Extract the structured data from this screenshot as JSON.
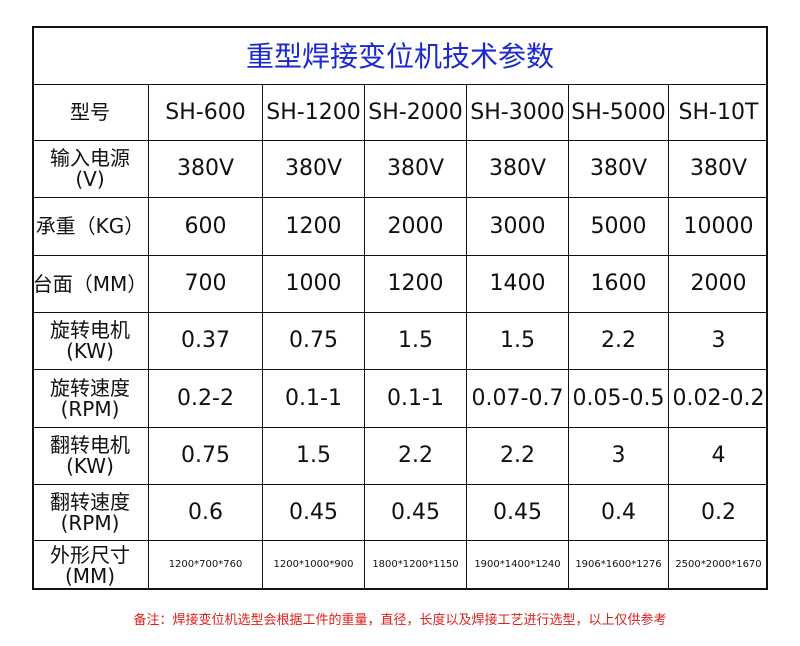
{
  "table": {
    "title": "重型焊接变位机技术参数",
    "header": [
      "型号",
      "SH-600",
      "SH-1200",
      "SH-2000",
      "SH-3000",
      "SH-5000",
      "SH-10T"
    ],
    "rows": [
      {
        "label": [
          "输入电源",
          "(V)"
        ],
        "cells": [
          "380V",
          "380V",
          "380V",
          "380V",
          "380V",
          "380V"
        ]
      },
      {
        "label": [
          "承重（KG）"
        ],
        "cells": [
          "600",
          "1200",
          "2000",
          "3000",
          "5000",
          "10000"
        ]
      },
      {
        "label": [
          "台面（MM）"
        ],
        "cells": [
          "700",
          "1000",
          "1200",
          "1400",
          "1600",
          "2000"
        ]
      },
      {
        "label": [
          "旋转电机",
          "(KW)"
        ],
        "cells": [
          "0.37",
          "0.75",
          "1.5",
          "1.5",
          "2.2",
          "3"
        ]
      },
      {
        "label": [
          "旋转速度",
          "(RPM)"
        ],
        "cells": [
          "0.2-2",
          "0.1-1",
          "0.1-1",
          "0.07-0.7",
          "0.05-0.5",
          "0.02-0.2"
        ]
      },
      {
        "label": [
          "翻转电机",
          "(KW)"
        ],
        "cells": [
          "0.75",
          "1.5",
          "2.2",
          "2.2",
          "3",
          "4"
        ]
      },
      {
        "label": [
          "翻转速度",
          "(RPM)"
        ],
        "cells": [
          "0.6",
          "0.45",
          "0.45",
          "0.45",
          "0.4",
          "0.2"
        ]
      },
      {
        "label": [
          "外形尺寸",
          "(MM)"
        ],
        "cells": [
          "1200*700*760",
          "1200*1000*900",
          "1800*1200*1150",
          "1900*1400*1240",
          "1906*1600*1276",
          "2500*2000*1670"
        ]
      }
    ]
  },
  "note": "备注：焊接变位机选型会根据工件的重量，直径，长度以及焊接工艺进行选型，以上仅供参考"
}
